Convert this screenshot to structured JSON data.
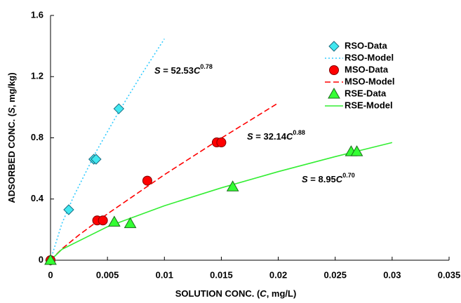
{
  "chart_data": {
    "type": "scatter",
    "x_label": [
      "SOLUTION CONC. (",
      "C",
      ", mg/L)"
    ],
    "y_label": [
      "ADSORBED CONC. (",
      "S",
      ", mg/kg)"
    ],
    "xlim": [
      0,
      0.035
    ],
    "xticks": [
      0,
      0.005,
      0.01,
      0.015,
      0.02,
      0.025,
      0.03,
      0.035
    ],
    "ylim": [
      0,
      1.6
    ],
    "yticks": [
      0,
      0.4,
      0.8,
      1.2,
      1.6
    ],
    "grid": false,
    "legend": "upper right",
    "series": [
      {
        "name": "RSO-Data",
        "kind": "marker",
        "marker": "diamond",
        "color": "#40e8f0",
        "edge": "#1a6b80",
        "x": [
          0,
          0.0016,
          0.0038,
          0.004,
          0.006
        ],
        "values": [
          0,
          0.33,
          0.66,
          0.66,
          0.99
        ]
      },
      {
        "name": "RSO-Model",
        "kind": "line",
        "dash": "2,3",
        "color": "#33ccff",
        "x": [
          0,
          0.001,
          0.002,
          0.004,
          0.006,
          0.008,
          0.01
        ],
        "values": [
          0,
          0.24,
          0.412,
          0.709,
          0.971,
          1.215,
          1.447
        ]
      },
      {
        "name": "MSO-Data",
        "kind": "marker",
        "marker": "circle",
        "color": "#ff0000",
        "edge": "#800000",
        "x": [
          0,
          0.0041,
          0.0046,
          0.0085,
          0.0146,
          0.015
        ],
        "values": [
          0,
          0.26,
          0.26,
          0.52,
          0.77,
          0.77
        ]
      },
      {
        "name": "MSO-Model",
        "kind": "line",
        "dash": "8,4",
        "color": "#ff0000",
        "x": [
          0,
          0.001,
          0.0025,
          0.005,
          0.01,
          0.015,
          0.02
        ],
        "values": [
          0,
          0.074,
          0.165,
          0.303,
          0.559,
          0.798,
          1.028
        ]
      },
      {
        "name": "RSE-Data",
        "kind": "marker",
        "marker": "triangle",
        "color": "#33ff33",
        "edge": "#1a6b1a",
        "x": [
          0,
          0.0056,
          0.007,
          0.016,
          0.0264,
          0.0269
        ],
        "values": [
          0,
          0.25,
          0.24,
          0.48,
          0.71,
          0.71
        ]
      },
      {
        "name": "RSE-Model",
        "kind": "line",
        "dash": "none",
        "color": "#33ee33",
        "x": [
          0,
          0.001,
          0.005,
          0.01,
          0.015,
          0.02,
          0.025,
          0.03
        ],
        "values": [
          0,
          0.071,
          0.219,
          0.356,
          0.473,
          0.579,
          0.677,
          0.769
        ]
      }
    ],
    "annotations": [
      [
        "S",
        " = 52.53",
        "C",
        "0.78"
      ],
      [
        "S",
        " = 32.14",
        "C",
        "0.88"
      ],
      [
        "S",
        " = 8.95",
        "C",
        "0.70"
      ]
    ]
  }
}
